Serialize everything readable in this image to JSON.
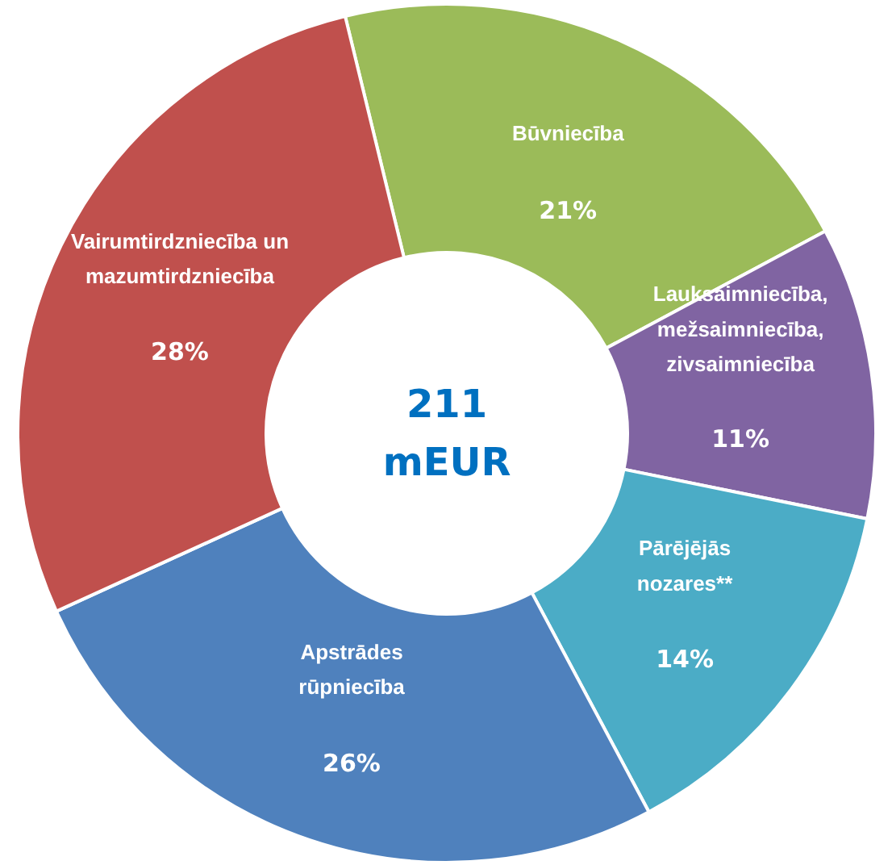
{
  "chart_data": {
    "type": "donut",
    "categories": [
      "Būvniecība",
      "Lauksaimniecība,\nmežsaimniecība,\nzivsaimniecība",
      "Pārējējās\nnozares**",
      "Apstrādes\nrūpniecība",
      "Vairumtirdzniecība un\nmazumtirdzniecība"
    ],
    "values": [
      21,
      11,
      14,
      26,
      28
    ],
    "value_labels": [
      "21%",
      "11%",
      "14%",
      "26%",
      "28%"
    ],
    "colors": [
      "#9bbb59",
      "#8064a2",
      "#4bacc6",
      "#4f81bd",
      "#c0504d"
    ],
    "annotations": [
      "211\nmEUR"
    ]
  }
}
